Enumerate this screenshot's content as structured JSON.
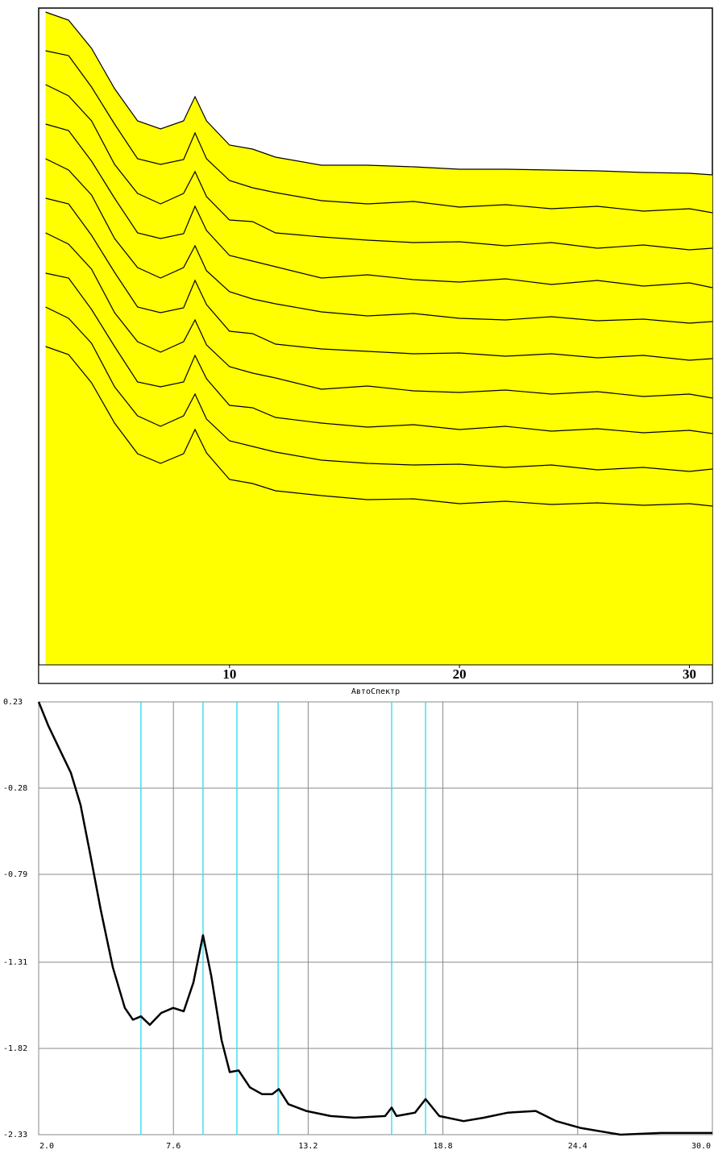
{
  "chart_data": [
    {
      "type": "waterfall",
      "color": "#ffff00",
      "line_color": "#000000",
      "x": [
        2,
        3,
        4,
        5,
        6,
        7,
        8,
        8.5,
        9,
        10,
        11,
        12,
        14,
        16,
        18,
        20,
        22,
        24,
        26,
        28,
        30,
        31
      ],
      "xlim": [
        1.7,
        31.0
      ],
      "xticks": [
        10,
        20,
        30
      ],
      "ylim": [
        0,
        815
      ],
      "series": [
        {
          "values": [
            810,
            800,
            765,
            715,
            675,
            665,
            675,
            705,
            675,
            645,
            640,
            630,
            620,
            620,
            618,
            615,
            615,
            614,
            613,
            611,
            610,
            608
          ]
        },
        {
          "values": [
            762,
            756,
            717,
            671,
            628,
            621,
            627,
            660,
            628,
            601,
            592,
            586,
            576,
            572,
            575,
            568,
            571,
            566,
            569,
            563,
            566,
            561
          ]
        },
        {
          "values": [
            720,
            706,
            675,
            621,
            585,
            572,
            585,
            612,
            581,
            552,
            550,
            536,
            531,
            527,
            524,
            525,
            520,
            524,
            517,
            521,
            515,
            517
          ]
        },
        {
          "values": [
            671,
            663,
            625,
            579,
            536,
            529,
            535,
            569,
            539,
            508,
            501,
            494,
            480,
            484,
            478,
            475,
            479,
            472,
            477,
            470,
            474,
            468
          ]
        },
        {
          "values": [
            628,
            614,
            583,
            529,
            493,
            480,
            493,
            520,
            489,
            463,
            454,
            448,
            438,
            433,
            436,
            430,
            428,
            432,
            427,
            429,
            424,
            426
          ]
        },
        {
          "values": [
            579,
            572,
            533,
            487,
            444,
            437,
            443,
            477,
            447,
            414,
            411,
            398,
            392,
            389,
            386,
            387,
            383,
            386,
            381,
            384,
            378,
            380
          ]
        },
        {
          "values": [
            536,
            522,
            491,
            437,
            401,
            388,
            401,
            428,
            397,
            370,
            362,
            356,
            342,
            346,
            340,
            338,
            341,
            336,
            339,
            333,
            336,
            331
          ]
        },
        {
          "values": [
            486,
            480,
            441,
            395,
            351,
            345,
            351,
            384,
            355,
            322,
            319,
            307,
            300,
            295,
            298,
            292,
            296,
            290,
            293,
            288,
            291,
            287
          ]
        },
        {
          "values": [
            444,
            430,
            399,
            345,
            309,
            296,
            309,
            336,
            305,
            278,
            271,
            264,
            254,
            250,
            248,
            249,
            245,
            248,
            242,
            245,
            240,
            243
          ]
        },
        {
          "values": [
            395,
            385,
            350,
            300,
            262,
            250,
            262,
            292,
            263,
            230,
            225,
            216,
            210,
            205,
            206,
            200,
            203,
            199,
            201,
            198,
            200,
            197
          ]
        }
      ]
    },
    {
      "type": "line",
      "title": "АвтоСпектр",
      "color": "#000000",
      "marker_color": "#40e0f0",
      "grid": true,
      "xlim": [
        2.0,
        30.0
      ],
      "ylim": [
        -2.33,
        0.23
      ],
      "xticks": [
        {
          "value": 2,
          "label": "2.0"
        },
        7.6,
        13.2,
        18.8,
        24.4,
        {
          "value": 30,
          "label": "30.0"
        }
      ],
      "yticks": [
        0.23,
        -0.28,
        -0.79,
        -1.31,
        -1.82,
        -2.33
      ],
      "markers": [
        6.25,
        8.83,
        10.24,
        11.95,
        16.67,
        18.08
      ],
      "x": [
        2.0,
        2.4,
        2.9,
        3.34,
        3.74,
        4.14,
        4.58,
        5.08,
        5.58,
        5.92,
        6.25,
        6.62,
        7.09,
        7.59,
        8.03,
        8.43,
        8.83,
        9.17,
        9.6,
        9.94,
        10.31,
        10.78,
        11.28,
        11.71,
        11.98,
        12.38,
        13.12,
        14.13,
        15.13,
        16.4,
        16.67,
        16.87,
        17.64,
        18.08,
        18.65,
        19.66,
        20.49,
        21.5,
        22.66,
        23.51,
        24.51,
        26.18,
        27.86,
        30.0
      ],
      "values": [
        0.23,
        0.09,
        -0.06,
        -0.19,
        -0.38,
        -0.67,
        -1.0,
        -1.34,
        -1.58,
        -1.65,
        -1.63,
        -1.68,
        -1.61,
        -1.58,
        -1.6,
        -1.43,
        -1.15,
        -1.39,
        -1.77,
        -1.96,
        -1.95,
        -2.05,
        -2.09,
        -2.09,
        -2.06,
        -2.15,
        -2.19,
        -2.22,
        -2.23,
        -2.22,
        -2.17,
        -2.22,
        -2.2,
        -2.12,
        -2.22,
        -2.25,
        -2.23,
        -2.2,
        -2.19,
        -2.25,
        -2.29,
        -2.33,
        -2.32,
        -2.32
      ]
    }
  ]
}
